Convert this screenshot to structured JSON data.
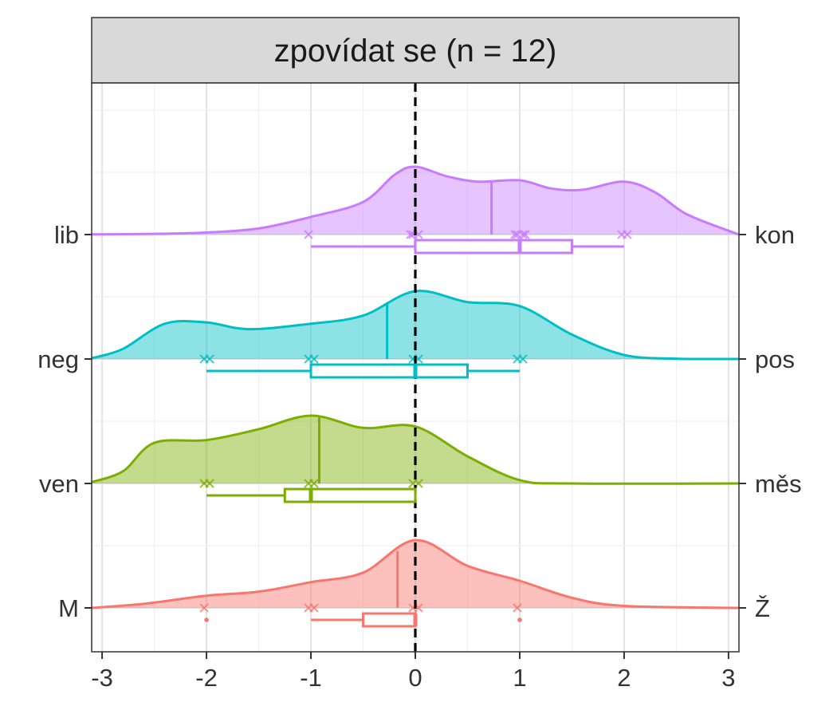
{
  "chart_data": {
    "type": "ridgeline-density-boxplot",
    "title": "zpovídat se (n = 12)",
    "xlim": [
      -3.1,
      3.1
    ],
    "x_ticks": [
      -3,
      -2,
      -1,
      0,
      1,
      2,
      3
    ],
    "x_tick_labels": [
      "-3",
      "-2",
      "-1",
      "0",
      "1",
      "2",
      "3"
    ],
    "reference_line_x": 0,
    "series": [
      {
        "left_label": "lib",
        "right_label": "kon",
        "color": "#C77CFF",
        "mean": 0.73,
        "points": [
          -1,
          0,
          0,
          0,
          1,
          1,
          1,
          1,
          2,
          2
        ],
        "box": {
          "whisker_low": -1,
          "q1": 0,
          "median": 1,
          "q3": 1.5,
          "whisker_high": 2
        },
        "outliers": [],
        "density": [
          [
            -3.1,
            0.002
          ],
          [
            -2.5,
            0.01
          ],
          [
            -2.0,
            0.03
          ],
          [
            -1.5,
            0.09
          ],
          [
            -1.0,
            0.26
          ],
          [
            -0.5,
            0.48
          ],
          [
            -0.2,
            0.88
          ],
          [
            0.0,
            1.0
          ],
          [
            0.3,
            0.86
          ],
          [
            0.6,
            0.78
          ],
          [
            1.0,
            0.8
          ],
          [
            1.3,
            0.68
          ],
          [
            1.6,
            0.66
          ],
          [
            2.0,
            0.78
          ],
          [
            2.3,
            0.62
          ],
          [
            2.6,
            0.3
          ],
          [
            3.1,
            0.0
          ]
        ]
      },
      {
        "left_label": "neg",
        "right_label": "pos",
        "color": "#00BFC4",
        "mean": -0.27,
        "points": [
          -2,
          -2,
          -1,
          -1,
          0,
          0,
          1,
          1
        ],
        "box": {
          "whisker_low": -2,
          "q1": -1,
          "median": 0,
          "q3": 0.5,
          "whisker_high": 1
        },
        "outliers": [],
        "density": [
          [
            -3.1,
            0.01
          ],
          [
            -2.8,
            0.15
          ],
          [
            -2.4,
            0.52
          ],
          [
            -2.0,
            0.54
          ],
          [
            -1.6,
            0.44
          ],
          [
            -1.0,
            0.52
          ],
          [
            -0.5,
            0.64
          ],
          [
            0.0,
            1.0
          ],
          [
            0.5,
            0.84
          ],
          [
            1.0,
            0.78
          ],
          [
            1.5,
            0.36
          ],
          [
            2.0,
            0.06
          ],
          [
            2.5,
            0.005
          ],
          [
            3.1,
            0.0
          ]
        ]
      },
      {
        "left_label": "ven",
        "right_label": "měs",
        "color": "#7CAE00",
        "mean": -0.92,
        "points": [
          -2,
          -2,
          -1,
          -1,
          0,
          0
        ],
        "box": {
          "whisker_low": -2,
          "q1": -1.25,
          "median": -1,
          "q3": 0,
          "whisker_high": 0
        },
        "outliers": [],
        "density": [
          [
            -3.1,
            0.02
          ],
          [
            -2.8,
            0.18
          ],
          [
            -2.5,
            0.6
          ],
          [
            -2.0,
            0.64
          ],
          [
            -1.5,
            0.8
          ],
          [
            -1.0,
            1.0
          ],
          [
            -0.5,
            0.82
          ],
          [
            0.0,
            0.84
          ],
          [
            0.5,
            0.4
          ],
          [
            1.0,
            0.05
          ],
          [
            1.5,
            0.0
          ],
          [
            3.1,
            0.0
          ]
        ]
      },
      {
        "left_label": "M",
        "right_label": "Ž",
        "color": "#F8766D",
        "mean": -0.17,
        "points": [
          -2,
          -1,
          -1,
          0,
          0,
          1
        ],
        "box": {
          "whisker_low": -1,
          "q1": -0.5,
          "median": 0,
          "q3": 0,
          "whisker_high": 0
        },
        "outliers": [
          -2,
          1
        ],
        "density": [
          [
            -3.1,
            0.0
          ],
          [
            -2.6,
            0.06
          ],
          [
            -2.0,
            0.18
          ],
          [
            -1.5,
            0.24
          ],
          [
            -1.0,
            0.38
          ],
          [
            -0.5,
            0.52
          ],
          [
            0.0,
            1.0
          ],
          [
            0.5,
            0.62
          ],
          [
            1.0,
            0.4
          ],
          [
            1.5,
            0.15
          ],
          [
            2.0,
            0.03
          ],
          [
            3.1,
            0.0
          ]
        ]
      }
    ]
  }
}
